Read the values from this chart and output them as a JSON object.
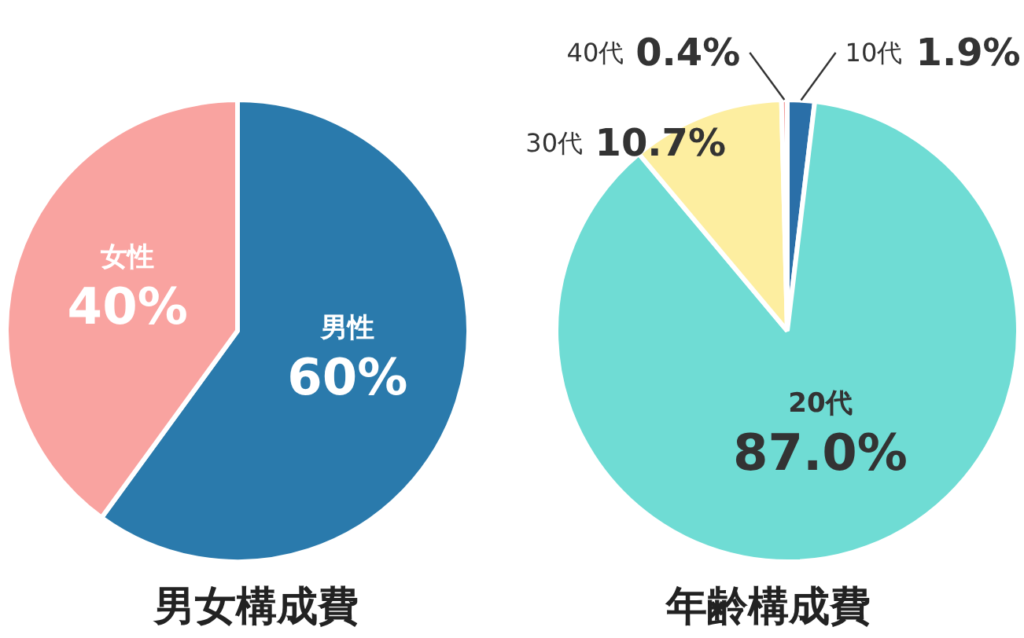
{
  "chart_data": [
    {
      "type": "pie",
      "title": "男女構成費",
      "categories": [
        "男性",
        "女性"
      ],
      "values": [
        60,
        40
      ],
      "colors": [
        "#2a7aac",
        "#f9a3a0"
      ],
      "value_labels": [
        "60%",
        "40%"
      ]
    },
    {
      "type": "pie",
      "title": "年齢構成費",
      "categories": [
        "10代",
        "20代",
        "30代",
        "40代"
      ],
      "values": [
        1.9,
        87.0,
        10.7,
        0.4
      ],
      "colors": [
        "#2a6fa8",
        "#6fdcd4",
        "#fdeea0",
        "#f29c9c"
      ],
      "value_labels": [
        "1.9%",
        "87.0%",
        "10.7%",
        "0.4%"
      ]
    }
  ]
}
